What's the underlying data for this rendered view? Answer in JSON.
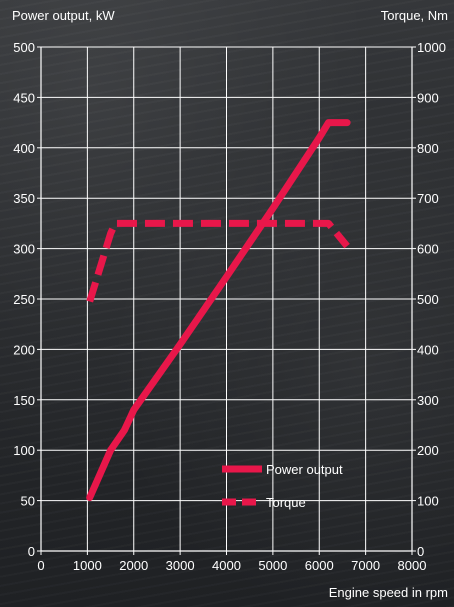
{
  "chart_data": {
    "type": "line",
    "ylabel_left": "Power output, kW",
    "ylabel_right": "Torque, Nm",
    "xlabel": "Engine speed in rpm",
    "xlim": [
      0,
      8000
    ],
    "ylim_left": [
      0,
      500
    ],
    "ylim_right": [
      0,
      1000
    ],
    "x_ticks": [
      0,
      1000,
      2000,
      3000,
      4000,
      5000,
      6000,
      7000,
      8000
    ],
    "y_ticks_left": [
      0,
      50,
      100,
      150,
      200,
      250,
      300,
      350,
      400,
      450,
      500
    ],
    "y_ticks_right": [
      0,
      100,
      200,
      300,
      400,
      500,
      600,
      700,
      800,
      900,
      1000
    ],
    "grid": true,
    "legend_position": "bottom-right",
    "series": [
      {
        "name": "Power output",
        "axis": "left",
        "style": "solid",
        "color": "#e8174a",
        "x": [
          1050,
          1500,
          1800,
          2000,
          3000,
          4000,
          5000,
          6000,
          6200,
          6600
        ],
        "y": [
          53,
          100,
          120,
          140,
          205,
          272,
          340,
          410,
          425,
          425
        ]
      },
      {
        "name": "Torque",
        "axis": "right",
        "style": "dashed",
        "color": "#e8174a",
        "x": [
          1050,
          1500,
          1600,
          2000,
          3000,
          4000,
          5000,
          6000,
          6200,
          6600
        ],
        "y": [
          495,
          630,
          650,
          650,
          650,
          650,
          650,
          650,
          650,
          605
        ]
      }
    ]
  }
}
